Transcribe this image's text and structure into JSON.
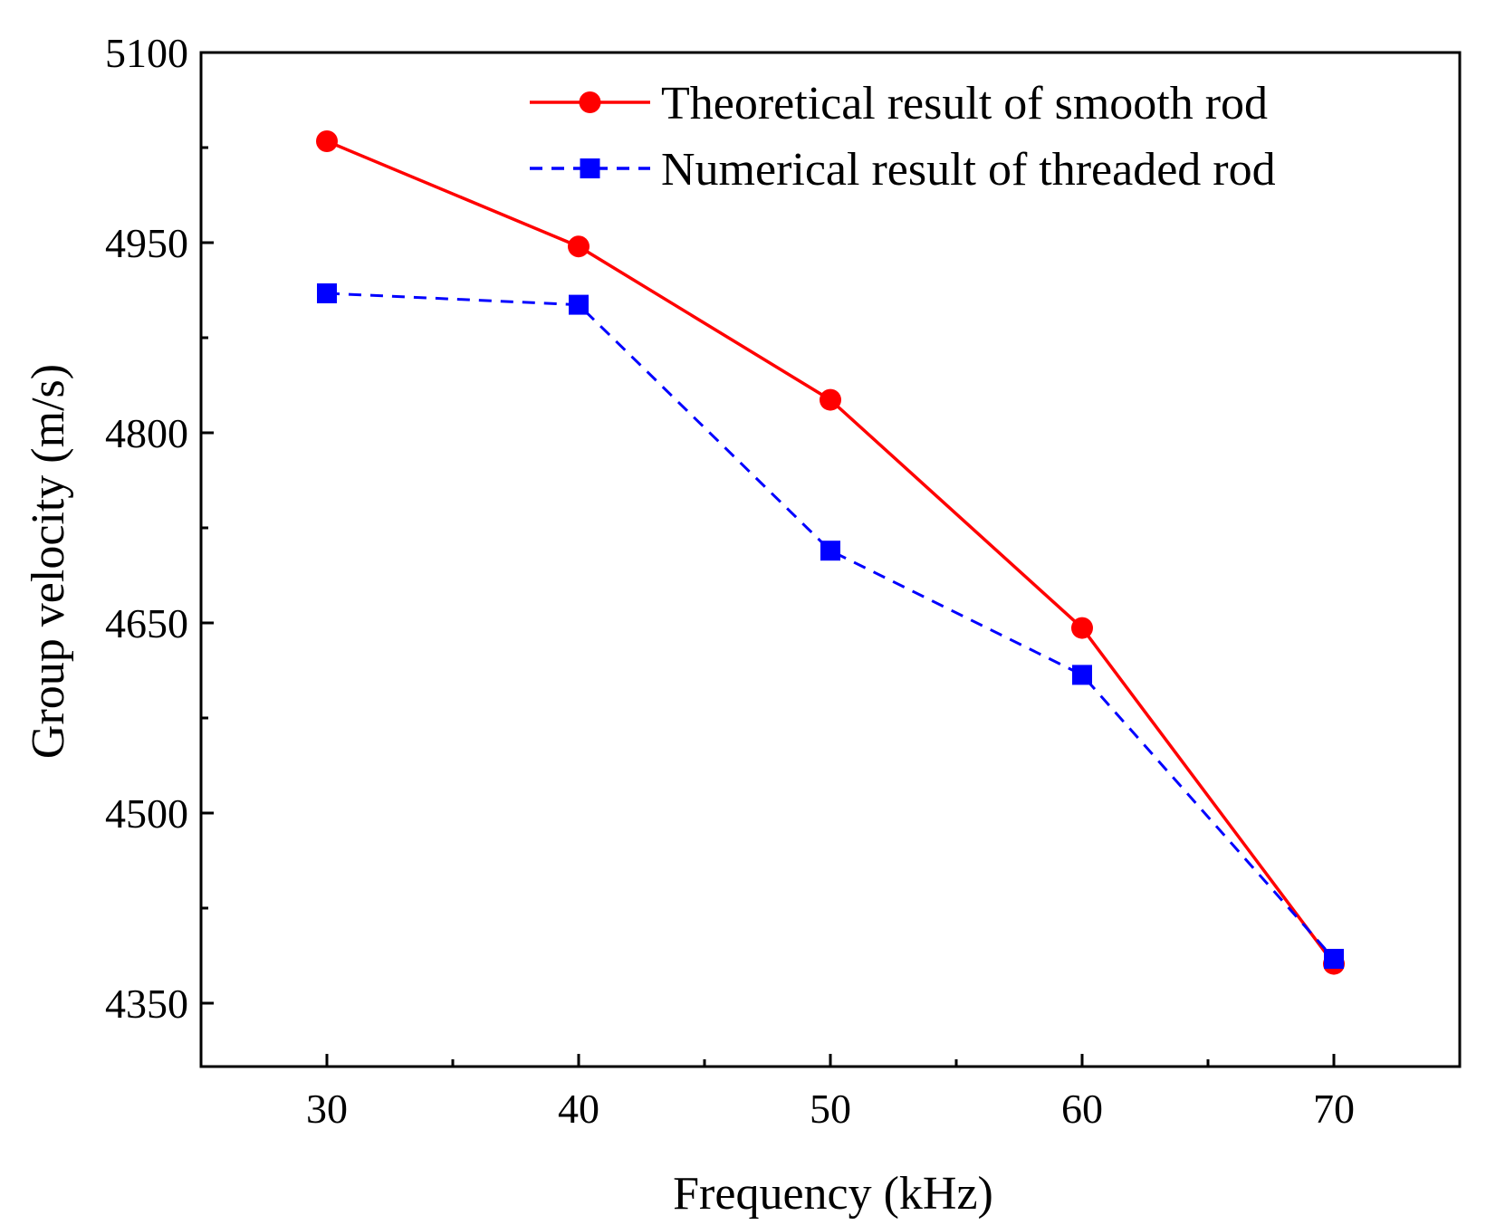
{
  "chart_data": {
    "type": "line",
    "title": "",
    "xlabel": "Frequency (kHz)",
    "ylabel": "Group velocity (m/s)",
    "xlim": [
      25,
      75
    ],
    "ylim": [
      4300,
      5100
    ],
    "x_ticks": [
      30,
      40,
      50,
      60,
      70
    ],
    "x_minor_ticks": [
      35,
      45,
      55,
      65
    ],
    "y_ticks": [
      4350,
      4500,
      4650,
      4800,
      4950,
      5100
    ],
    "y_minor_ticks": [
      4425,
      4575,
      4725,
      4875,
      5025
    ],
    "x_tick_labels": [
      "30",
      "40",
      "50",
      "60",
      "70"
    ],
    "y_tick_labels": [
      "4350",
      "4500",
      "4650",
      "4800",
      "4950",
      "5100"
    ],
    "legend_position": "top-right",
    "grid": false,
    "series": [
      {
        "name": "Theoretical result of smooth rod",
        "color": "#ff0000",
        "line_style": "solid",
        "marker": "circle",
        "x": [
          30,
          40,
          50,
          60,
          70
        ],
        "values": [
          5030,
          4947,
          4826,
          4646,
          4381
        ]
      },
      {
        "name": "Numerical result of threaded rod",
        "color": "#0000ff",
        "line_style": "dashed",
        "marker": "square",
        "x": [
          30,
          40,
          50,
          60,
          70
        ],
        "values": [
          4910,
          4901,
          4707,
          4609,
          4385
        ]
      }
    ]
  }
}
